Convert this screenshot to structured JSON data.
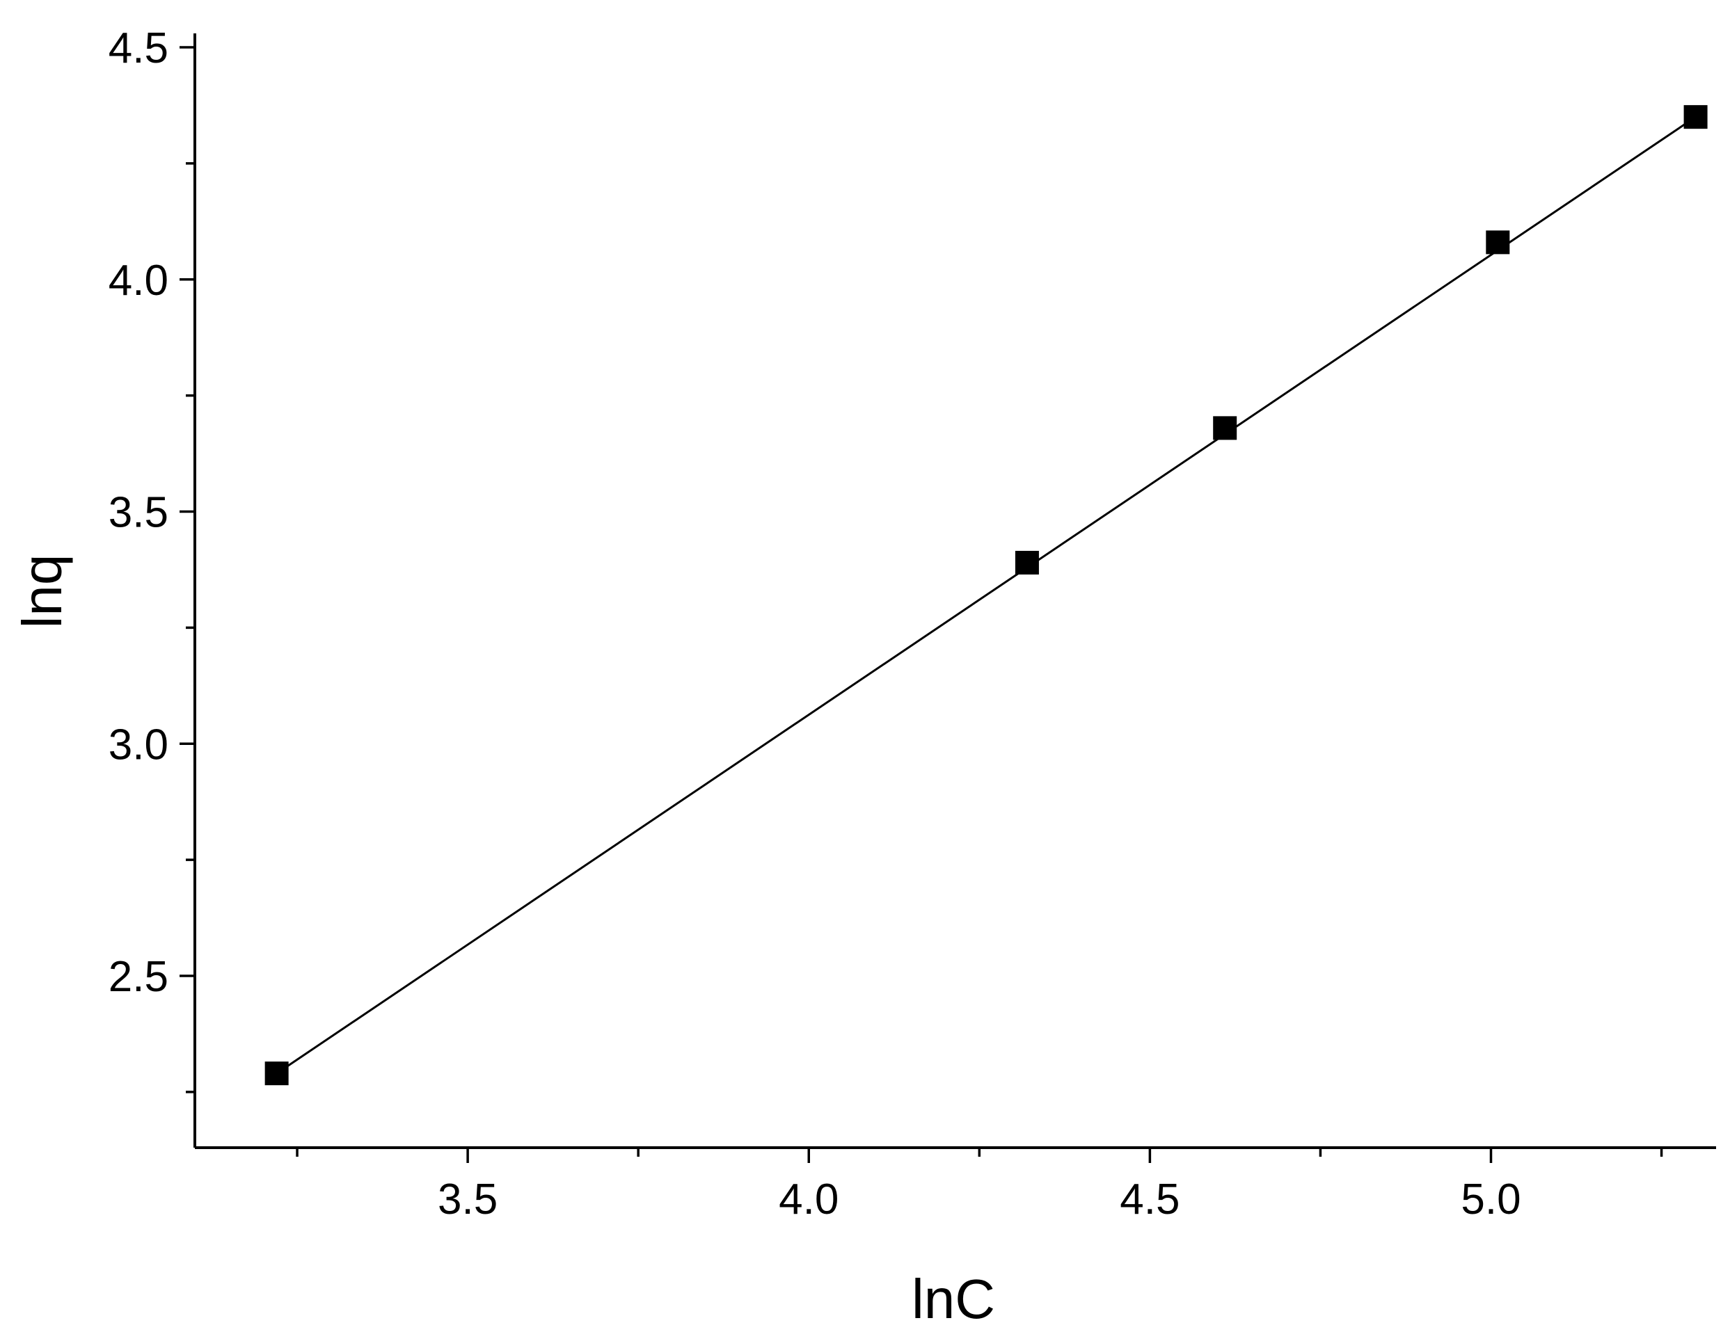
{
  "chart_data": {
    "type": "scatter",
    "title": "",
    "xlabel": "lnC",
    "ylabel": "lnq",
    "xlim": [
      3.1,
      5.33
    ],
    "ylim": [
      2.13,
      4.53
    ],
    "x_ticks": [
      {
        "value": 3.5,
        "label": "3.5"
      },
      {
        "value": 4.0,
        "label": "4.0"
      },
      {
        "value": 4.5,
        "label": "4.5"
      },
      {
        "value": 5.0,
        "label": "5.0"
      }
    ],
    "x_minor_ticks": [
      3.25,
      3.75,
      4.25,
      4.75,
      5.25
    ],
    "y_ticks": [
      {
        "value": 2.5,
        "label": "2.5"
      },
      {
        "value": 3.0,
        "label": "3.0"
      },
      {
        "value": 3.5,
        "label": "3.5"
      },
      {
        "value": 4.0,
        "label": "4.0"
      },
      {
        "value": 4.5,
        "label": "4.5"
      }
    ],
    "y_minor_ticks": [
      2.25,
      2.75,
      3.25,
      3.75,
      4.25
    ],
    "grid": false,
    "series": [
      {
        "marker": "square",
        "color": "#000000",
        "points": [
          {
            "x": 3.22,
            "y": 2.29
          },
          {
            "x": 4.32,
            "y": 3.39
          },
          {
            "x": 4.61,
            "y": 3.68
          },
          {
            "x": 5.01,
            "y": 4.08
          },
          {
            "x": 5.3,
            "y": 4.35
          }
        ]
      }
    ],
    "fit_line": {
      "color": "#000000",
      "from": {
        "x": 3.22,
        "y": 2.29
      },
      "to": {
        "x": 5.3,
        "y": 4.35
      }
    }
  }
}
